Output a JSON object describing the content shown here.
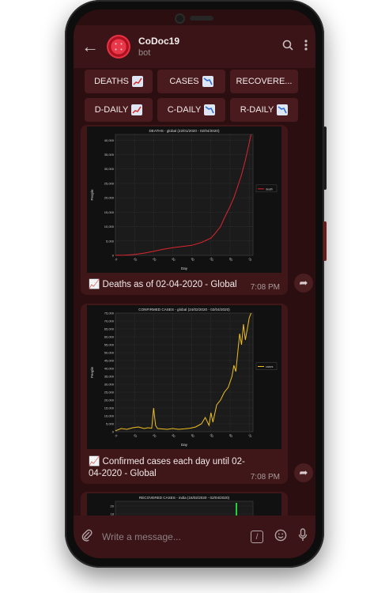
{
  "header": {
    "title": "CoDoc19",
    "subtitle": "bot"
  },
  "keyboard": {
    "row1": [
      "DEATHS",
      "CASES",
      "RECOVERE..."
    ],
    "row2": [
      "D-DAILY",
      "C-DAILY",
      "R-DAILY"
    ]
  },
  "messages": [
    {
      "caption": "Deaths as of 02-04-2020 - Global",
      "time": "7:08 PM",
      "chart_data": {
        "type": "line",
        "title": "DEATHS - global (22/01/2020 - 02/04/2020)",
        "xlabel": "Day",
        "ylabel": "People",
        "xlim": [
          0,
          72
        ],
        "ylim": [
          0,
          42000
        ],
        "yticks": [
          "0",
          "5,000",
          "10,000",
          "15,000",
          "20,000",
          "25,000",
          "30,000",
          "35,000",
          "40,000"
        ],
        "xticks": [
          "0",
          "10",
          "20",
          "30",
          "40",
          "50",
          "60",
          "70"
        ],
        "series": [
          {
            "name": "death",
            "color": "#e0242f",
            "x": [
              0,
              5,
              10,
              15,
              20,
              25,
              30,
              35,
              40,
              45,
              50,
              52,
              55,
              57,
              60,
              62,
              64,
              66,
              68,
              70,
              71
            ],
            "values": [
              20,
              80,
              300,
              800,
              1400,
              2100,
              2700,
              3100,
              3500,
              4500,
              6000,
              7500,
              10000,
              13000,
              17000,
              20000,
              24000,
              28000,
              33000,
              39000,
              46000
            ]
          }
        ]
      }
    },
    {
      "caption": "Confirmed cases each day until 02-04-2020 - Global",
      "time": "7:08 PM",
      "chart_data": {
        "type": "line",
        "title": "CONFIRMED CASES - global (24/02/2020 - 02/04/2020)",
        "xlabel": "Day",
        "ylabel": "People",
        "xlim": [
          0,
          72
        ],
        "ylim": [
          0,
          75000
        ],
        "yticks": [
          "0",
          "5,000",
          "10,000",
          "15,000",
          "20,000",
          "25,000",
          "30,000",
          "35,000",
          "40,000",
          "45,000",
          "50,000",
          "55,000",
          "60,000",
          "65,000",
          "70,000",
          "75,000"
        ],
        "xticks": [
          "0",
          "10",
          "20",
          "30",
          "40",
          "50",
          "60",
          "70"
        ],
        "series": [
          {
            "name": "cases",
            "color": "#f0c020",
            "x": [
              0,
              3,
              6,
              9,
              12,
              15,
              17,
              19,
              20,
              21,
              22,
              24,
              27,
              30,
              33,
              36,
              39,
              42,
              45,
              47,
              49,
              50,
              51,
              53,
              55,
              57,
              59,
              61,
              62,
              63,
              64,
              65,
              66,
              67,
              68,
              69,
              70,
              71
            ],
            "values": [
              600,
              2000,
              1500,
              2500,
              3000,
              2000,
              2500,
              2200,
              15000,
              4000,
              2000,
              1800,
              1500,
              2000,
              1500,
              1800,
              2200,
              3000,
              5000,
              9000,
              4000,
              12000,
              6000,
              17000,
              20000,
              25000,
              28000,
              35000,
              42000,
              38000,
              50000,
              62000,
              55000,
              68000,
              58000,
              65000,
              72000,
              78000
            ]
          }
        ]
      }
    },
    {
      "caption": "",
      "time": "",
      "chart_data": {
        "type": "bar",
        "title": "RECOVERED CASES - india (16/02/2020 - 02/04/2020)",
        "yticks": [
          "20",
          "18"
        ]
      }
    }
  ],
  "input": {
    "placeholder": "Write a message..."
  }
}
